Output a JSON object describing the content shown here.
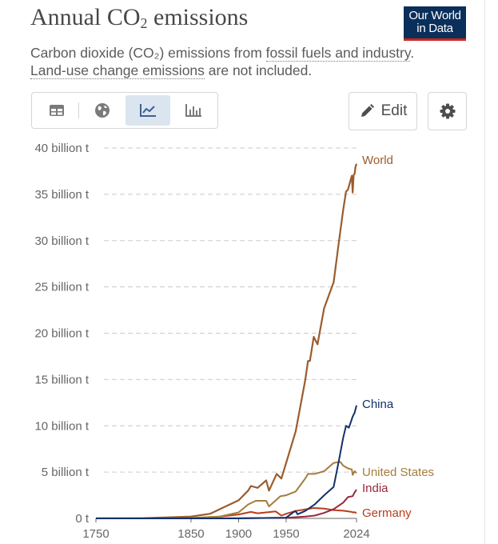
{
  "header": {
    "title_main": "Annual CO",
    "title_sub": "2",
    "title_rest": " emissions",
    "logo_line1": "Our World",
    "logo_line2": "in Data"
  },
  "subtitle": {
    "p1": "Carbon dioxide (CO₂) emissions from ",
    "link1": "fossil fuels and industry",
    "p2": ".",
    "link2": "Land-use change emissions",
    "p3": " are not included."
  },
  "controls": {
    "tabs": [
      {
        "icon": "table-icon",
        "active": false
      },
      {
        "icon": "globe-icon",
        "active": false
      },
      {
        "icon": "line-chart-icon",
        "active": true
      },
      {
        "icon": "bar-chart-icon",
        "active": false
      }
    ],
    "edit_label": "Edit",
    "settings_icon": "gear-icon"
  },
  "colors": {
    "World": "#9a5c2e",
    "China": "#13316a",
    "United States": "#a47d3c",
    "India": "#99273b",
    "Germany": "#b83e1c",
    "grid": "#cccccc",
    "axis": "#666666"
  },
  "chart_data": {
    "type": "line",
    "title": "Annual CO₂ emissions",
    "xlim": [
      1750,
      2024
    ],
    "ylim": [
      0,
      40
    ],
    "x_ticks": [
      1750,
      1850,
      1900,
      1950,
      2024
    ],
    "y_ticks": [
      0,
      5,
      10,
      15,
      20,
      25,
      30,
      35,
      40
    ],
    "y_tick_labels": [
      "0 t",
      "5 billion t",
      "10 billion t",
      "15 billion t",
      "20 billion t",
      "25 billion t",
      "30 billion t",
      "35 billion t",
      "40 billion t"
    ],
    "y_unit": "billion t",
    "grid": true,
    "legend": "inline-right",
    "series": [
      {
        "name": "World",
        "points": [
          [
            1750,
            0.01
          ],
          [
            1800,
            0.03
          ],
          [
            1850,
            0.2
          ],
          [
            1870,
            0.5
          ],
          [
            1900,
            1.95
          ],
          [
            1910,
            3.0
          ],
          [
            1913,
            3.5
          ],
          [
            1920,
            3.3
          ],
          [
            1929,
            4.1
          ],
          [
            1932,
            3.0
          ],
          [
            1940,
            4.8
          ],
          [
            1945,
            4.3
          ],
          [
            1950,
            6.0
          ],
          [
            1960,
            9.4
          ],
          [
            1970,
            14.9
          ],
          [
            1973,
            17.0
          ],
          [
            1975,
            17.0
          ],
          [
            1979,
            19.6
          ],
          [
            1983,
            18.8
          ],
          [
            1990,
            22.7
          ],
          [
            2000,
            25.5
          ],
          [
            2005,
            29.5
          ],
          [
            2010,
            33.3
          ],
          [
            2013,
            35.3
          ],
          [
            2015,
            35.5
          ],
          [
            2019,
            37.0
          ],
          [
            2020,
            35.2
          ],
          [
            2021,
            37.1
          ],
          [
            2022,
            37.2
          ],
          [
            2023,
            38.0
          ],
          [
            2024,
            38.3
          ]
        ]
      },
      {
        "name": "China",
        "points": [
          [
            1750,
            0
          ],
          [
            1900,
            0.0
          ],
          [
            1950,
            0.08
          ],
          [
            1958,
            0.7
          ],
          [
            1960,
            0.8
          ],
          [
            1962,
            0.45
          ],
          [
            1970,
            0.8
          ],
          [
            1980,
            1.5
          ],
          [
            1990,
            2.5
          ],
          [
            2000,
            3.4
          ],
          [
            2005,
            6.0
          ],
          [
            2010,
            8.7
          ],
          [
            2013,
            10.0
          ],
          [
            2016,
            9.8
          ],
          [
            2019,
            10.7
          ],
          [
            2020,
            11.0
          ],
          [
            2022,
            11.4
          ],
          [
            2024,
            12.2
          ]
        ]
      },
      {
        "name": "United States",
        "points": [
          [
            1750,
            0
          ],
          [
            1800,
            0.0
          ],
          [
            1850,
            0.05
          ],
          [
            1880,
            0.2
          ],
          [
            1900,
            0.65
          ],
          [
            1910,
            1.5
          ],
          [
            1918,
            1.9
          ],
          [
            1929,
            1.9
          ],
          [
            1932,
            1.3
          ],
          [
            1944,
            2.4
          ],
          [
            1950,
            2.5
          ],
          [
            1960,
            2.9
          ],
          [
            1970,
            4.3
          ],
          [
            1973,
            4.8
          ],
          [
            1980,
            4.8
          ],
          [
            1990,
            5.1
          ],
          [
            2000,
            6.0
          ],
          [
            2007,
            6.1
          ],
          [
            2010,
            5.7
          ],
          [
            2015,
            5.4
          ],
          [
            2019,
            5.3
          ],
          [
            2020,
            4.7
          ],
          [
            2022,
            5.1
          ],
          [
            2024,
            4.9
          ]
        ]
      },
      {
        "name": "India",
        "points": [
          [
            1750,
            0
          ],
          [
            1900,
            0.02
          ],
          [
            1950,
            0.07
          ],
          [
            1970,
            0.2
          ],
          [
            1980,
            0.3
          ],
          [
            1990,
            0.6
          ],
          [
            2000,
            1.0
          ],
          [
            2010,
            1.7
          ],
          [
            2015,
            2.3
          ],
          [
            2020,
            2.4
          ],
          [
            2022,
            2.8
          ],
          [
            2024,
            3.1
          ]
        ]
      },
      {
        "name": "Germany",
        "points": [
          [
            1750,
            0
          ],
          [
            1850,
            0.02
          ],
          [
            1880,
            0.2
          ],
          [
            1900,
            0.42
          ],
          [
            1913,
            0.7
          ],
          [
            1920,
            0.55
          ],
          [
            1939,
            0.75
          ],
          [
            1945,
            0.3
          ],
          [
            1950,
            0.5
          ],
          [
            1960,
            0.8
          ],
          [
            1979,
            1.12
          ],
          [
            1990,
            1.05
          ],
          [
            2000,
            0.9
          ],
          [
            2010,
            0.83
          ],
          [
            2019,
            0.7
          ],
          [
            2020,
            0.65
          ],
          [
            2022,
            0.67
          ],
          [
            2024,
            0.57
          ]
        ]
      }
    ]
  }
}
